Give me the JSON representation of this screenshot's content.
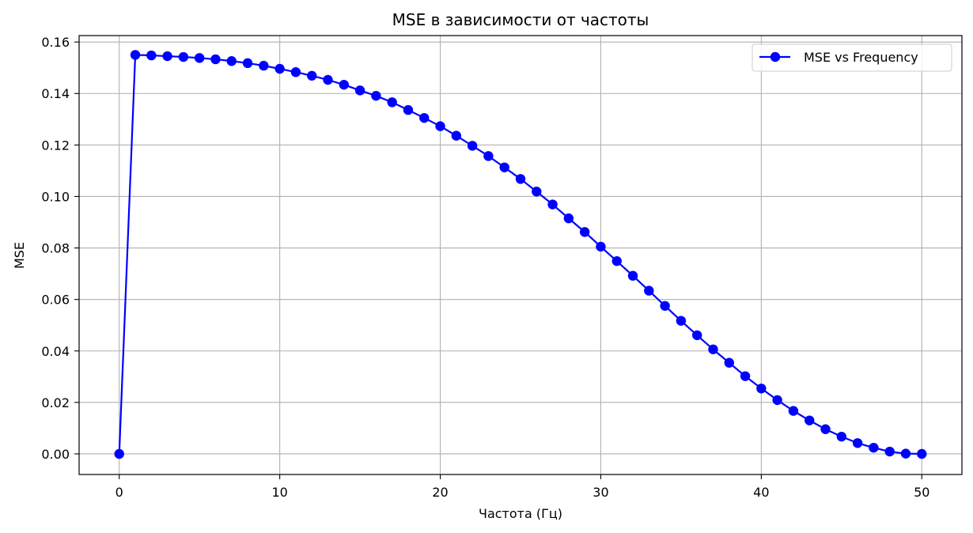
{
  "chart_data": {
    "type": "line",
    "title": "MSE в зависимости от частоты",
    "xlabel": "Частота (Гц)",
    "ylabel": "MSE",
    "xlim": [
      -2.5,
      52.5
    ],
    "ylim": [
      -0.008,
      0.1625
    ],
    "xticks": [
      0,
      10,
      20,
      30,
      40,
      50
    ],
    "yticks": [
      0.0,
      0.02,
      0.04,
      0.06,
      0.08,
      0.1,
      0.12,
      0.14,
      0.16
    ],
    "ytick_labels": [
      "0.00",
      "0.02",
      "0.04",
      "0.06",
      "0.08",
      "0.10",
      "0.12",
      "0.14",
      "0.16"
    ],
    "grid": true,
    "legend_position": "top-right",
    "series": [
      {
        "name": "MSE vs Frequency",
        "color": "#0000ff",
        "marker": "circle",
        "x": [
          0,
          1,
          2,
          3,
          4,
          5,
          6,
          7,
          8,
          9,
          10,
          11,
          12,
          13,
          14,
          15,
          16,
          17,
          18,
          19,
          20,
          21,
          22,
          23,
          24,
          25,
          26,
          27,
          28,
          29,
          30,
          31,
          32,
          33,
          34,
          35,
          36,
          37,
          38,
          39,
          40,
          41,
          42,
          43,
          44,
          45,
          46,
          47,
          48,
          49,
          50
        ],
        "y": [
          0.0,
          0.155,
          0.1548,
          0.1545,
          0.1542,
          0.1538,
          0.1533,
          0.1526,
          0.1518,
          0.1508,
          0.1496,
          0.1483,
          0.1469,
          0.1453,
          0.1434,
          0.1412,
          0.1391,
          0.1366,
          0.1336,
          0.1305,
          0.1273,
          0.1236,
          0.1197,
          0.1157,
          0.1113,
          0.1068,
          0.1019,
          0.0969,
          0.0915,
          0.0862,
          0.0805,
          0.0749,
          0.0692,
          0.0634,
          0.0575,
          0.0517,
          0.0461,
          0.0406,
          0.0354,
          0.0302,
          0.0254,
          0.0209,
          0.0167,
          0.013,
          0.0096,
          0.0067,
          0.0042,
          0.0024,
          0.0009,
          0.0001,
          0.0
        ]
      }
    ]
  }
}
